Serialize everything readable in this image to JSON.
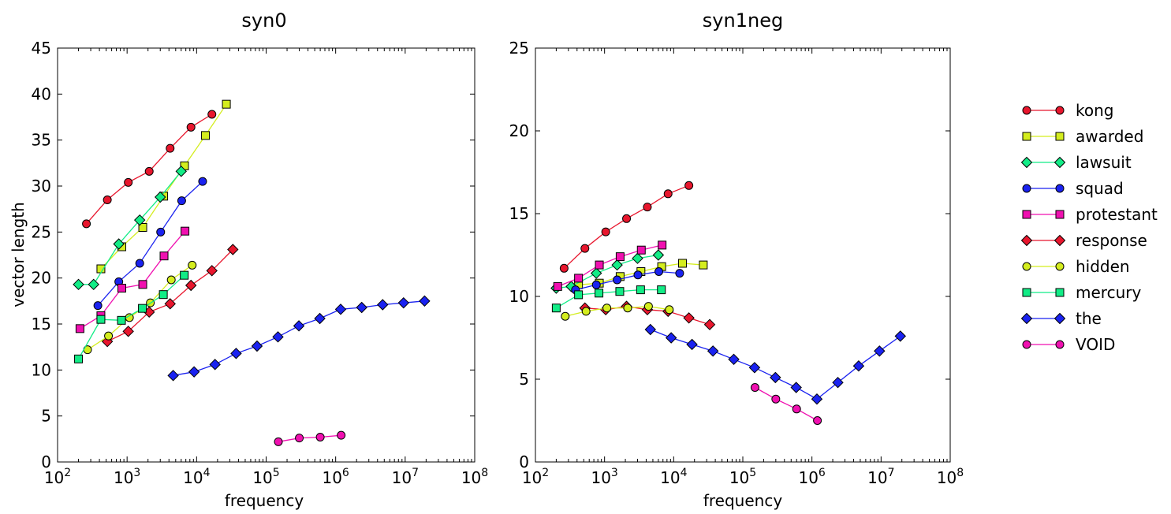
{
  "chart_data": [
    {
      "type": "line",
      "title": "syn0",
      "xlabel": "frequency",
      "ylabel": "vector length",
      "xscale": "log",
      "xlim": [
        100,
        100000000
      ],
      "ylim": [
        0,
        45
      ],
      "xticks": [
        {
          "value": 100,
          "base": "10",
          "exp": "2"
        },
        {
          "value": 1000,
          "base": "10",
          "exp": "3"
        },
        {
          "value": 10000,
          "base": "10",
          "exp": "4"
        },
        {
          "value": 100000,
          "base": "10",
          "exp": "5"
        },
        {
          "value": 1000000,
          "base": "10",
          "exp": "6"
        },
        {
          "value": 10000000,
          "base": "10",
          "exp": "7"
        },
        {
          "value": 100000000,
          "base": "10",
          "exp": "8"
        }
      ],
      "yticks": [
        0,
        5,
        10,
        15,
        20,
        25,
        30,
        35,
        40,
        45
      ],
      "series": [
        {
          "name": "kong",
          "x": [
            260,
            520,
            1040,
            2080,
            4160,
            8300,
            16600
          ],
          "y": [
            25.9,
            28.5,
            30.4,
            31.6,
            34.1,
            36.4,
            37.8
          ]
        },
        {
          "name": "awarded",
          "x": [
            420,
            840,
            1680,
            3360,
            6700,
            13400,
            26800
          ],
          "y": [
            21.0,
            23.4,
            25.5,
            28.9,
            32.2,
            35.5,
            38.9
          ]
        },
        {
          "name": "lawsuit",
          "x": [
            200,
            330,
            760,
            1520,
            3000,
            6000
          ],
          "y": [
            19.3,
            19.3,
            23.7,
            26.3,
            28.8,
            31.6
          ]
        },
        {
          "name": "squad",
          "x": [
            380,
            760,
            1520,
            3040,
            6100,
            12200
          ],
          "y": [
            17.0,
            19.6,
            21.6,
            25.0,
            28.4,
            30.5
          ]
        },
        {
          "name": "protestant",
          "x": [
            210,
            420,
            840,
            1680,
            3400,
            6800
          ],
          "y": [
            14.5,
            15.9,
            18.9,
            19.3,
            22.4,
            25.1
          ]
        },
        {
          "name": "response",
          "x": [
            520,
            1040,
            2080,
            4160,
            8300,
            16600,
            33200
          ],
          "y": [
            13.1,
            14.2,
            16.3,
            17.2,
            19.2,
            20.8,
            23.1
          ]
        },
        {
          "name": "hidden",
          "x": [
            270,
            540,
            1080,
            2160,
            4320,
            8640
          ],
          "y": [
            12.2,
            13.7,
            15.7,
            17.3,
            19.8,
            21.4
          ]
        },
        {
          "name": "mercury",
          "x": [
            200,
            420,
            830,
            1660,
            3320,
            6640
          ],
          "y": [
            11.2,
            15.5,
            15.4,
            16.7,
            18.2,
            20.3
          ]
        },
        {
          "name": "the",
          "x": [
            4600,
            9200,
            18400,
            37000,
            74000,
            148000,
            296000,
            592000,
            1180000,
            2370000,
            4740000,
            9480000,
            19000000
          ],
          "y": [
            9.4,
            9.8,
            10.6,
            11.8,
            12.6,
            13.6,
            14.8,
            15.6,
            16.6,
            16.8,
            17.1,
            17.3,
            17.5
          ]
        },
        {
          "name": "VOID",
          "x": [
            150000,
            300000,
            600000,
            1200000
          ],
          "y": [
            2.2,
            2.6,
            2.7,
            2.9
          ]
        }
      ]
    },
    {
      "type": "line",
      "title": "syn1neg",
      "xlabel": "frequency",
      "ylabel": "",
      "xscale": "log",
      "xlim": [
        100,
        100000000
      ],
      "ylim": [
        0,
        25
      ],
      "xticks": [
        {
          "value": 100,
          "base": "10",
          "exp": "2"
        },
        {
          "value": 1000,
          "base": "10",
          "exp": "3"
        },
        {
          "value": 10000,
          "base": "10",
          "exp": "4"
        },
        {
          "value": 100000,
          "base": "10",
          "exp": "5"
        },
        {
          "value": 1000000,
          "base": "10",
          "exp": "6"
        },
        {
          "value": 10000000,
          "base": "10",
          "exp": "7"
        },
        {
          "value": 100000000,
          "base": "10",
          "exp": "8"
        }
      ],
      "yticks": [
        0,
        5,
        10,
        15,
        20,
        25
      ],
      "series": [
        {
          "name": "kong",
          "x": [
            260,
            520,
            1040,
            2080,
            4160,
            8300,
            16600
          ],
          "y": [
            11.7,
            12.9,
            13.9,
            14.7,
            15.4,
            16.2,
            16.7
          ]
        },
        {
          "name": "awarded",
          "x": [
            420,
            840,
            1680,
            3360,
            6700,
            13400,
            26800
          ],
          "y": [
            10.7,
            10.8,
            11.2,
            11.5,
            11.8,
            12.0,
            11.9
          ]
        },
        {
          "name": "lawsuit",
          "x": [
            200,
            330,
            760,
            1520,
            3000,
            6000
          ],
          "y": [
            10.5,
            10.6,
            11.4,
            11.9,
            12.3,
            12.5
          ]
        },
        {
          "name": "squad",
          "x": [
            380,
            760,
            1520,
            3040,
            6100,
            12200
          ],
          "y": [
            10.4,
            10.7,
            11.0,
            11.3,
            11.5,
            11.4
          ]
        },
        {
          "name": "protestant",
          "x": [
            210,
            420,
            840,
            1680,
            3400,
            6800
          ],
          "y": [
            10.6,
            11.1,
            11.9,
            12.4,
            12.8,
            13.1
          ]
        },
        {
          "name": "response",
          "x": [
            520,
            1040,
            2080,
            4160,
            8300,
            16600,
            33200
          ],
          "y": [
            9.3,
            9.2,
            9.4,
            9.2,
            9.1,
            8.7,
            8.3
          ]
        },
        {
          "name": "hidden",
          "x": [
            270,
            540,
            1080,
            2160,
            4320,
            8640
          ],
          "y": [
            8.8,
            9.1,
            9.3,
            9.3,
            9.4,
            9.2
          ]
        },
        {
          "name": "mercury",
          "x": [
            200,
            420,
            830,
            1660,
            3320,
            6640
          ],
          "y": [
            9.3,
            10.1,
            10.2,
            10.3,
            10.4,
            10.4
          ]
        },
        {
          "name": "the",
          "x": [
            4600,
            9200,
            18400,
            37000,
            74000,
            148000,
            296000,
            592000,
            1180000,
            2370000,
            4740000,
            9480000,
            19000000
          ],
          "y": [
            8.0,
            7.5,
            7.1,
            6.7,
            6.2,
            5.7,
            5.1,
            4.5,
            3.8,
            4.8,
            5.8,
            6.7,
            7.6
          ]
        },
        {
          "name": "VOID",
          "x": [
            150000,
            300000,
            600000,
            1200000
          ],
          "y": [
            4.5,
            3.8,
            3.2,
            2.5
          ]
        }
      ]
    }
  ],
  "legend": {
    "placement": "right",
    "items": [
      {
        "name": "kong",
        "color": "#e8162d",
        "marker": "circle"
      },
      {
        "name": "awarded",
        "color": "#d4ed1e",
        "marker": "square"
      },
      {
        "name": "lawsuit",
        "color": "#12ec86",
        "marker": "diamond"
      },
      {
        "name": "squad",
        "color": "#1a22f0",
        "marker": "circle"
      },
      {
        "name": "protestant",
        "color": "#f010b0",
        "marker": "square"
      },
      {
        "name": "response",
        "color": "#e8162d",
        "marker": "diamond"
      },
      {
        "name": "hidden",
        "color": "#d4ed1e",
        "marker": "circle"
      },
      {
        "name": "mercury",
        "color": "#12ec86",
        "marker": "square"
      },
      {
        "name": "the",
        "color": "#1a22f0",
        "marker": "diamond"
      },
      {
        "name": "VOID",
        "color": "#f010b0",
        "marker": "circle"
      }
    ]
  }
}
